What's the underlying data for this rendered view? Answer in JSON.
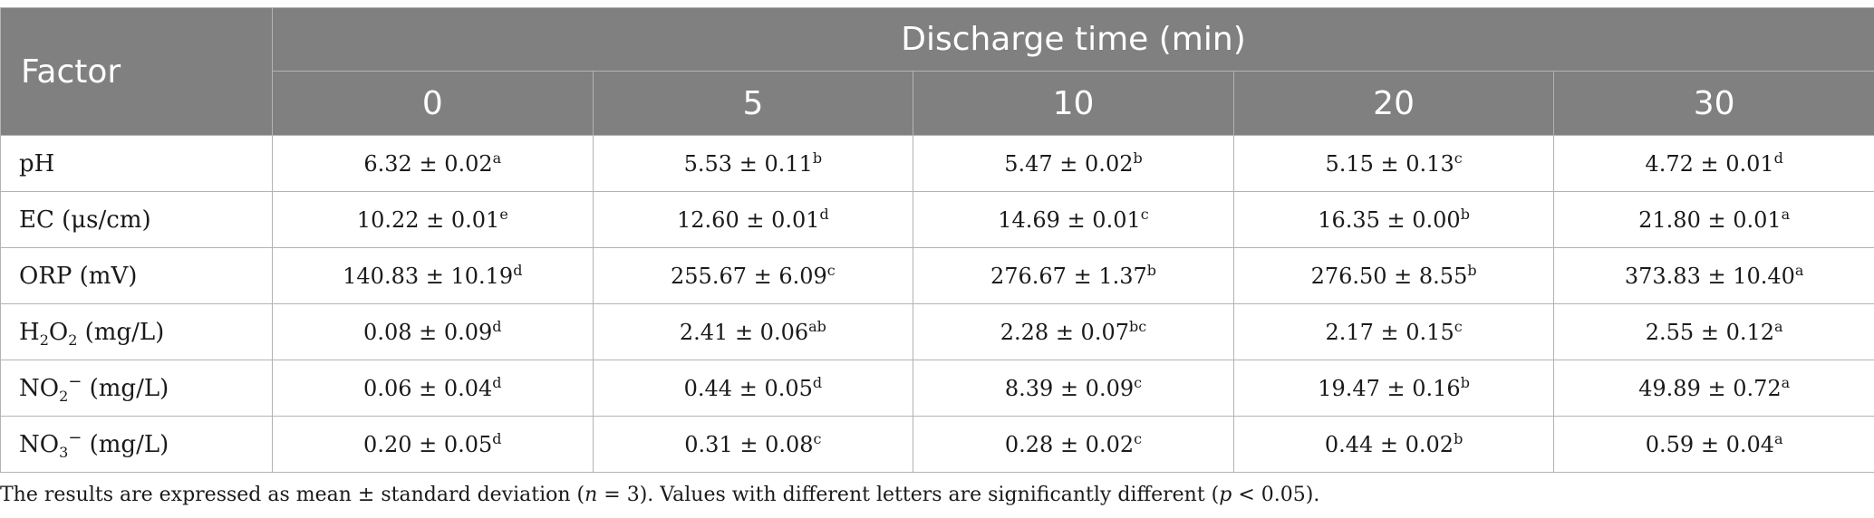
{
  "table": {
    "factor_header": "Factor",
    "group_header": "Discharge time (min)",
    "time_headers": [
      "0",
      "5",
      "10",
      "20",
      "30"
    ],
    "rows": [
      {
        "label_parts": {
          "base": "pH"
        },
        "cells": [
          {
            "value": "6.32 ± 0.02",
            "letter": "a"
          },
          {
            "value": "5.53 ± 0.11",
            "letter": "b"
          },
          {
            "value": "5.47 ± 0.02",
            "letter": "b"
          },
          {
            "value": "5.15 ± 0.13",
            "letter": "c"
          },
          {
            "value": "4.72 ± 0.01",
            "letter": "d"
          }
        ]
      },
      {
        "label_parts": {
          "base": "EC (μs/cm)"
        },
        "cells": [
          {
            "value": "10.22 ± 0.01",
            "letter": "e"
          },
          {
            "value": "12.60 ± 0.01",
            "letter": "d"
          },
          {
            "value": "14.69 ± 0.01",
            "letter": "c"
          },
          {
            "value": "16.35 ± 0.00",
            "letter": "b"
          },
          {
            "value": "21.80 ± 0.01",
            "letter": "a"
          }
        ]
      },
      {
        "label_parts": {
          "base": "ORP (mV)"
        },
        "cells": [
          {
            "value": "140.83 ± 10.19",
            "letter": "d"
          },
          {
            "value": "255.67 ± 6.09",
            "letter": "c"
          },
          {
            "value": "276.67 ± 1.37",
            "letter": "b"
          },
          {
            "value": "276.50 ± 8.55",
            "letter": "b"
          },
          {
            "value": "373.83 ± 10.40",
            "letter": "a"
          }
        ]
      },
      {
        "label_parts": {
          "pre": "H",
          "sub1": "2",
          "mid": "O",
          "sub2": "2",
          "unit": " (mg/L)"
        },
        "cells": [
          {
            "value": "0.08 ± 0.09",
            "letter": "d"
          },
          {
            "value": "2.41 ± 0.06",
            "letter": "ab"
          },
          {
            "value": "2.28 ± 0.07",
            "letter": "bc"
          },
          {
            "value": "2.17 ± 0.15",
            "letter": "c"
          },
          {
            "value": "2.55 ± 0.12",
            "letter": "a"
          }
        ]
      },
      {
        "label_parts": {
          "pre": "NO",
          "sub1": "2",
          "sup": "−",
          "unit": " (mg/L)"
        },
        "cells": [
          {
            "value": "0.06 ± 0.04",
            "letter": "d"
          },
          {
            "value": "0.44 ± 0.05",
            "letter": "d"
          },
          {
            "value": "8.39 ± 0.09",
            "letter": "c"
          },
          {
            "value": "19.47 ± 0.16",
            "letter": "b"
          },
          {
            "value": "49.89 ± 0.72",
            "letter": "a"
          }
        ]
      },
      {
        "label_parts": {
          "pre": "NO",
          "sub1": "3",
          "sup": "−",
          "unit": " (mg/L)"
        },
        "cells": [
          {
            "value": "0.20 ± 0.05",
            "letter": "d"
          },
          {
            "value": "0.31 ± 0.08",
            "letter": "c"
          },
          {
            "value": "0.28 ± 0.02",
            "letter": "c"
          },
          {
            "value": "0.44 ± 0.02",
            "letter": "b"
          },
          {
            "value": "0.59 ± 0.04",
            "letter": "a"
          }
        ]
      }
    ]
  },
  "footnote": {
    "part1": "The results are expressed as mean ± standard deviation (",
    "n_var": "n",
    "part2": " = 3). Values with different letters are significantly different (",
    "p_var": "p",
    "part3": " < 0.05)."
  },
  "colors": {
    "header_bg": "#808080",
    "header_text": "#ffffff",
    "border": "#b3b3b3"
  }
}
